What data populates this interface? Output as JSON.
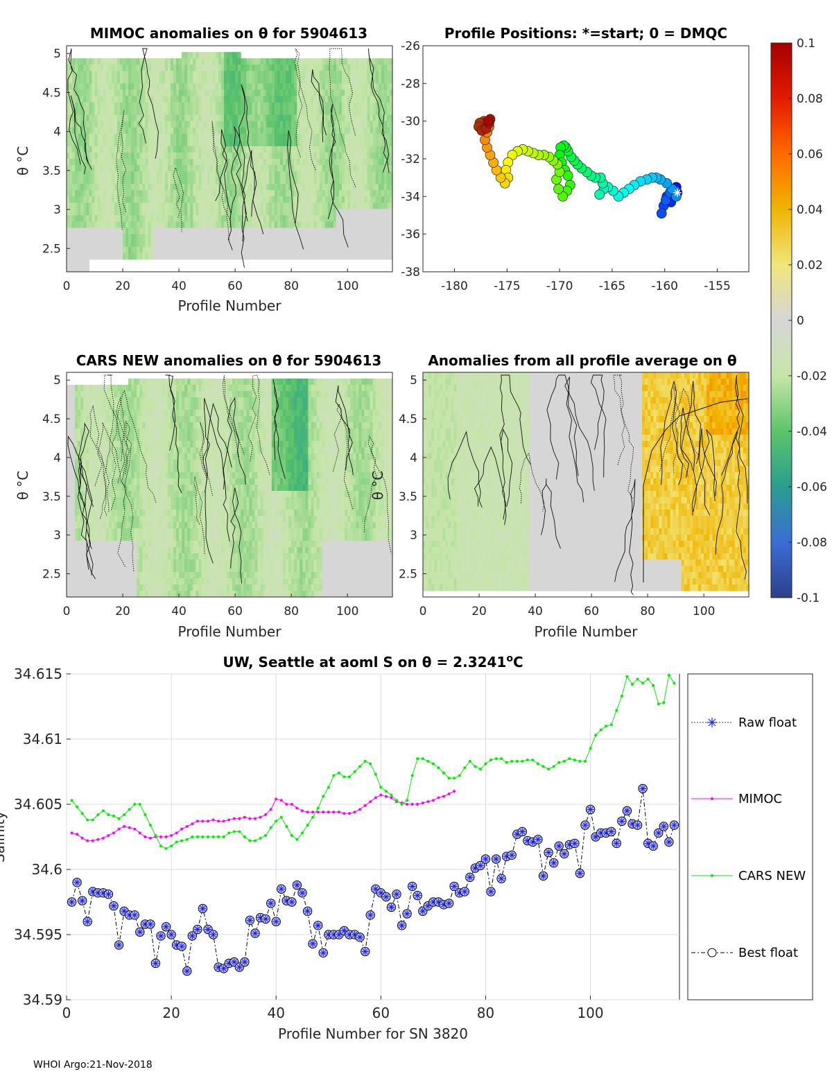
{
  "footer": "WHOI Argo:21-Nov-2018",
  "colors": {
    "grey": "#d6d6d6",
    "raw": "#1a1aff",
    "mimoc": "#ff00ff",
    "cars": "#00ee00",
    "best": "#000000",
    "best_face": "#b8bfff",
    "grid": "#dcdcdc",
    "axis": "#262626"
  },
  "panels": {
    "mimoc": {
      "title": "MIMOC anomalies on θ  for 5904613",
      "ylabel": "θ °C",
      "xlabel": "Profile Number",
      "xticks": [
        "0",
        "20",
        "40",
        "60",
        "80",
        "100"
      ],
      "yticks": [
        "5",
        "4.5",
        "4",
        "3.5",
        "3",
        "2.5"
      ]
    },
    "positions": {
      "title": "Profile Positions: *=start; 0 = DMQC",
      "xticks": [
        "-180",
        "-175",
        "-170",
        "-165",
        "-160",
        "-155"
      ],
      "yticks": [
        "-26",
        "-28",
        "-30",
        "-32",
        "-34",
        "-36",
        "-38"
      ]
    },
    "cars": {
      "title": "CARS NEW anomalies on θ for 5904613",
      "ylabel": "θ °C",
      "xlabel": "Profile Number",
      "xticks": [
        "0",
        "20",
        "40",
        "60",
        "80",
        "100"
      ],
      "yticks": [
        "5",
        "4.5",
        "4",
        "3.5",
        "3",
        "2.5"
      ]
    },
    "avg": {
      "title": "Anomalies from all profile average on θ",
      "ylabel": "θ °C",
      "xlabel": "Profile Number",
      "xticks": [
        "0",
        "20",
        "40",
        "60",
        "80",
        "100"
      ],
      "yticks": [
        "5",
        "4.5",
        "4",
        "3.5",
        "3",
        "2.5"
      ]
    },
    "colorbar": {
      "ticks": [
        "0.1",
        "0.08",
        "0.06",
        "0.04",
        "0.02",
        "0",
        "-0.02",
        "-0.04",
        "-0.06",
        "-0.08",
        "-0.1"
      ]
    },
    "salinity": {
      "title_main": "UW, Seattle at aoml S on θ = 2.3241",
      "title_sup": "o",
      "title_end": "C",
      "ylabel": "Salinity",
      "xlabel": "Profile Number for SN 3820",
      "xticks": [
        "0",
        "20",
        "40",
        "60",
        "80",
        "100"
      ],
      "yticks": [
        "34.615",
        "34.61",
        "34.605",
        "34.6",
        "34.595",
        "34.59"
      ],
      "legend": [
        "Raw float",
        "MIMOC",
        "CARS NEW",
        "Best float"
      ]
    }
  },
  "chart_data": [
    {
      "type": "heatmap",
      "title": "MIMOC anomalies on θ  for 5904613",
      "xlabel": "Profile Number",
      "ylabel": "θ °C",
      "xlim": [
        0,
        116
      ],
      "ylim": [
        2.2,
        5.1
      ],
      "clim": [
        -0.1,
        0.1
      ],
      "description_values": "anomalies mostly between -0.035 and 0, strongest negative near profiles 55-80"
    },
    {
      "type": "scatter",
      "title": "Profile Positions: *=start; 0 = DMQC",
      "xlim": [
        -183,
        -152
      ],
      "ylim": [
        -38,
        -26
      ],
      "track_lon": [
        -158.8,
        -158.9,
        -159.1,
        -159.4,
        -159.8,
        -160.1,
        -160.3,
        -159.9,
        -159.5,
        -159.3,
        -159.0,
        -158.9,
        -159.3,
        -159.8,
        -160.4,
        -160.8,
        -161.2,
        -161.7,
        -162.3,
        -162.9,
        -163.4,
        -163.9,
        -164.4,
        -164.9,
        -165.4,
        -165.8,
        -166.2,
        -165.9,
        -166.1,
        -166.6,
        -167.0,
        -167.4,
        -167.9,
        -168.3,
        -168.6,
        -168.9,
        -169.2,
        -169.4,
        -169.6,
        -169.9,
        -170.0,
        -169.8,
        -169.5,
        -169.2,
        -169.0,
        -169.3,
        -169.7,
        -170.1,
        -170.3,
        -170.0,
        -170.2,
        -170.6,
        -171.0,
        -171.5,
        -172.0,
        -172.5,
        -173.0,
        -173.5,
        -174.0,
        -174.5,
        -174.9,
        -175.1,
        -174.9,
        -175.2,
        -175.6,
        -176.0,
        -176.3,
        -176.6,
        -176.9,
        -177.1,
        -176.9,
        -176.7,
        -176.8,
        -177.2,
        -177.6,
        -177.7,
        -177.4,
        -177.0,
        -176.7,
        -176.6,
        -176.8
      ],
      "track_lat": [
        -33.8,
        -33.5,
        -33.9,
        -34.3,
        -34.0,
        -34.5,
        -34.9,
        -34.2,
        -33.8,
        -33.6,
        -33.7,
        -34.0,
        -33.6,
        -33.3,
        -33.1,
        -33.0,
        -33.0,
        -33.1,
        -33.2,
        -33.4,
        -33.6,
        -33.8,
        -34.0,
        -33.7,
        -33.5,
        -33.6,
        -33.9,
        -33.3,
        -33.0,
        -33.0,
        -32.9,
        -32.7,
        -32.5,
        -32.3,
        -32.1,
        -31.9,
        -31.6,
        -31.4,
        -31.3,
        -31.4,
        -31.8,
        -32.2,
        -32.6,
        -32.9,
        -33.4,
        -33.7,
        -34.0,
        -33.6,
        -33.1,
        -32.7,
        -32.3,
        -32.1,
        -31.9,
        -31.8,
        -31.8,
        -31.7,
        -31.6,
        -31.5,
        -31.6,
        -31.8,
        -32.2,
        -32.6,
        -33.0,
        -33.3,
        -33.0,
        -32.6,
        -32.2,
        -31.8,
        -31.4,
        -31.0,
        -30.6,
        -30.3,
        -30.1,
        -30.0,
        -30.1,
        -30.3,
        -30.5,
        -30.4,
        -30.1,
        -29.9,
        -30.0
      ],
      "start_marker": [
        -158.8,
        -33.8
      ]
    },
    {
      "type": "heatmap",
      "title": "CARS NEW anomalies on θ for 5904613",
      "xlabel": "Profile Number",
      "ylabel": "θ °C",
      "xlim": [
        0,
        116
      ],
      "ylim": [
        2.2,
        5.1
      ],
      "clim": [
        -0.1,
        0.1
      ],
      "description_values": "anomalies mostly between -0.04 and 0, strongest negative near profiles 75-85"
    },
    {
      "type": "heatmap",
      "title": "Anomalies from all profile average on θ",
      "xlabel": "Profile Number",
      "ylabel": "θ °C",
      "xlim": [
        0,
        116
      ],
      "ylim": [
        2.2,
        5.1
      ],
      "clim": [
        -0.1,
        0.1
      ],
      "description_values": "slightly negative for profiles 0-40, near zero 40-78, positive 0.02-0.04 for profiles 80-116"
    },
    {
      "type": "line",
      "title": "UW, Seattle at aoml S on θ = 2.3241°C",
      "xlabel": "Profile Number for SN 3820",
      "ylabel": "Salinity",
      "xlim": [
        0,
        117
      ],
      "ylim": [
        34.59,
        34.615
      ],
      "series": [
        {
          "name": "Best float",
          "x_start": 1,
          "values": [
            34.5975,
            34.599,
            34.5976,
            34.596,
            34.5983,
            34.5982,
            34.5982,
            34.5981,
            34.5972,
            34.5942,
            34.5968,
            34.5965,
            34.5965,
            34.5952,
            34.5958,
            34.5958,
            34.5928,
            34.5949,
            34.5956,
            34.595,
            34.5942,
            34.5941,
            34.5922,
            34.5949,
            34.5954,
            34.597,
            34.5954,
            34.595,
            34.5925,
            34.5924,
            34.5928,
            34.5929,
            34.5925,
            34.5929,
            34.5961,
            34.5951,
            34.5963,
            34.5962,
            34.5974,
            34.596,
            34.5985,
            34.5976,
            34.5975,
            34.5988,
            34.5982,
            34.5968,
            34.5943,
            34.5957,
            34.5936,
            34.595,
            34.595,
            34.595,
            34.5953,
            34.595,
            34.595,
            34.5948,
            34.5937,
            34.5965,
            34.5985,
            34.5982,
            34.5979,
            34.5971,
            34.5981,
            34.5957,
            34.5966,
            34.5987,
            34.598,
            34.5968,
            34.5972,
            34.5975,
            34.5975,
            34.5973,
            34.5974,
            34.5987,
            34.5982,
            34.5983,
            34.5994,
            34.6001,
            34.6003,
            34.6008,
            34.5983,
            34.6008,
            34.5993,
            34.601,
            34.6011,
            34.6027,
            34.6029,
            34.6022,
            34.6021,
            34.6023,
            34.5995,
            34.6013,
            34.6005,
            34.6018,
            34.6012,
            34.6019,
            34.602,
            34.5997,
            34.6034,
            34.6046,
            34.6025,
            34.6028,
            34.6028,
            34.6029,
            34.602,
            34.6037,
            34.6045,
            34.6035,
            34.6034,
            34.6062,
            34.602,
            34.6018,
            34.6028,
            34.6033,
            34.6021,
            34.6034
          ]
        },
        {
          "name": "MIMOC",
          "x_start": 1,
          "values": [
            34.6028,
            34.6027,
            34.6024,
            34.6022,
            34.6022,
            34.6023,
            34.6024,
            34.6026,
            34.6028,
            34.6031,
            34.6033,
            34.6032,
            34.6031,
            34.6028,
            34.6025,
            34.6024,
            34.6025,
            34.6025,
            34.6025,
            34.6026,
            34.6028,
            34.6031,
            34.6033,
            34.6035,
            34.6037,
            34.6037,
            34.6037,
            34.6038,
            34.6037,
            34.6037,
            34.6038,
            34.6039,
            34.6039,
            34.604,
            34.6039,
            34.6039,
            34.604,
            34.6042,
            34.6046,
            34.6054,
            34.6053,
            34.605,
            34.605,
            34.6047,
            34.6045,
            34.6044,
            34.6044,
            34.6044,
            34.6044,
            34.6044,
            34.6044,
            34.6044,
            34.6043,
            34.6043,
            34.6044,
            34.6046,
            34.6049,
            34.6052,
            34.6055,
            34.6057,
            34.6056,
            34.6055,
            34.6052,
            34.6051,
            34.605,
            34.605,
            34.605,
            34.6051,
            34.6052,
            34.6053,
            34.6055,
            34.6056,
            34.6058,
            34.606
          ]
        },
        {
          "name": "CARS NEW",
          "x_start": 1,
          "values": [
            34.6053,
            34.6048,
            34.6043,
            34.6038,
            34.6038,
            34.6042,
            34.6045,
            34.6042,
            34.6041,
            34.6039,
            34.6042,
            34.6046,
            34.605,
            34.605,
            34.6042,
            34.6034,
            34.6026,
            34.6018,
            34.6016,
            34.6018,
            34.6021,
            34.6022,
            34.6023,
            34.6025,
            34.6025,
            34.6025,
            34.6025,
            34.6025,
            34.6025,
            34.6025,
            34.6028,
            34.6029,
            34.6029,
            34.6025,
            34.6022,
            34.6022,
            34.6024,
            34.6026,
            34.6032,
            34.6037,
            34.604,
            34.6033,
            34.6026,
            34.6023,
            34.6028,
            34.6034,
            34.604,
            34.6047,
            34.6056,
            34.6063,
            34.6072,
            34.6074,
            34.6071,
            34.6071,
            34.6075,
            34.6079,
            34.6083,
            34.6081,
            34.6073,
            34.6063,
            34.606,
            34.6057,
            34.6053,
            34.605,
            34.6053,
            34.6072,
            34.6085,
            34.6085,
            34.6083,
            34.6081,
            34.6078,
            34.6074,
            34.607,
            34.607,
            34.6072,
            34.6078,
            34.6083,
            34.6079,
            34.6077,
            34.6081,
            34.6084,
            34.6085,
            34.6085,
            34.6082,
            34.6083,
            34.6083,
            34.6083,
            34.6084,
            34.6084,
            34.6081,
            34.6079,
            34.6077,
            34.6079,
            34.6082,
            34.6083,
            34.6085,
            34.6084,
            34.6083,
            34.6083,
            34.6093,
            34.6103,
            34.6107,
            34.611,
            34.6111,
            34.6122,
            34.6133,
            34.6148,
            34.6142,
            34.6146,
            34.6143,
            34.6146,
            34.6141,
            34.6127,
            34.6128,
            34.6149,
            34.6143
          ]
        }
      ]
    }
  ]
}
